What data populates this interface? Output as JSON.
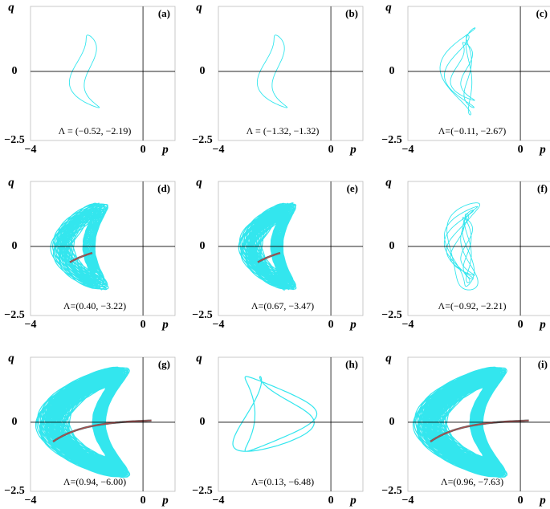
{
  "panels": [
    {
      "label": "(a)",
      "annotation": "Λ = (−0.52, −2.19)",
      "loops": 1,
      "fill": 0,
      "trend": false
    },
    {
      "label": "(b)",
      "annotation": "Λ = (−1.32, −1.32)",
      "loops": 1,
      "fill": 0,
      "trend": false
    },
    {
      "label": "(c)",
      "annotation": "Λ=(−0.11, −2.67)",
      "loops": 3,
      "fill": 0,
      "trend": false
    },
    {
      "label": "(d)",
      "annotation": "Λ=(0.40, −3.22)",
      "loops": 40,
      "fill": 1,
      "trend": true
    },
    {
      "label": "(e)",
      "annotation": "Λ=(0.67, −3.47)",
      "loops": 60,
      "fill": 2,
      "trend": true
    },
    {
      "label": "(f)",
      "annotation": "Λ=(−0.92, −2.21)",
      "loops": 5,
      "fill": 0,
      "trend": false
    },
    {
      "label": "(g)",
      "annotation": "Λ=(0.94, −6.00)",
      "loops": 90,
      "fill": 3,
      "trend": true
    },
    {
      "label": "(h)",
      "annotation": "Λ=(0.13, −6.48)",
      "loops": 2,
      "fill": 4,
      "trend": false
    },
    {
      "label": "(i)",
      "annotation": "Λ=(0.96, −7.63)",
      "loops": 90,
      "fill": 3,
      "trend": true
    }
  ],
  "axes": {
    "xlabel": "p",
    "ylabel": "q",
    "xlim": [
      -4,
      1.14
    ],
    "ylim": [
      -2.5,
      2.35
    ],
    "xticks": [
      {
        "value": -4,
        "label": "−4"
      },
      0
    ],
    "yticks": [
      {
        "value": -2.5,
        "label": "−2.5"
      },
      0
    ]
  }
}
